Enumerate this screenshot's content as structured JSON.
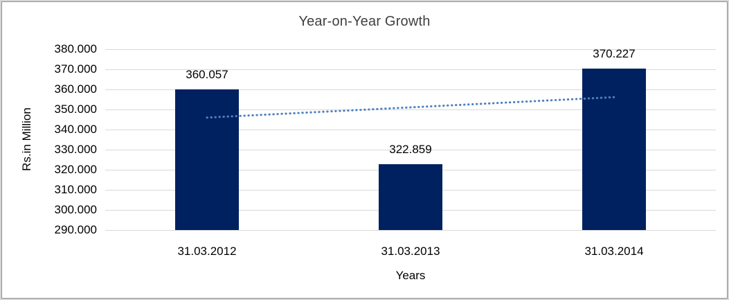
{
  "frame": {
    "background": "#ffffff",
    "border_color": "#8f8f8f",
    "outer_margin_color": "#d5d5d5"
  },
  "chart_data": {
    "type": "bar",
    "title": "Year-on-Year Growth",
    "xlabel": "Years",
    "ylabel": "Rs.in Million",
    "categories": [
      "31.03.2012",
      "31.03.2013",
      "31.03.2014"
    ],
    "values": [
      360.057,
      322.859,
      370.227
    ],
    "value_labels": [
      "360.057",
      "322.859",
      "370.227"
    ],
    "ylim": [
      290,
      380
    ],
    "yticks": [
      290,
      300,
      310,
      320,
      330,
      340,
      350,
      360,
      370,
      380
    ],
    "ytick_labels": [
      "290.000",
      "300.000",
      "310.000",
      "320.000",
      "330.000",
      "340.000",
      "350.000",
      "360.000",
      "370.000",
      "380.000"
    ],
    "grid": "horizontal",
    "gridline_color": "#d9d9d9",
    "legend": "none",
    "bar_color": "#002160",
    "text_color": "#000000",
    "title_color": "#404040",
    "trendline": {
      "type": "linear",
      "style": "dotted",
      "color": "#4f81bd",
      "start_value": 345.963,
      "end_value": 356.133
    }
  }
}
